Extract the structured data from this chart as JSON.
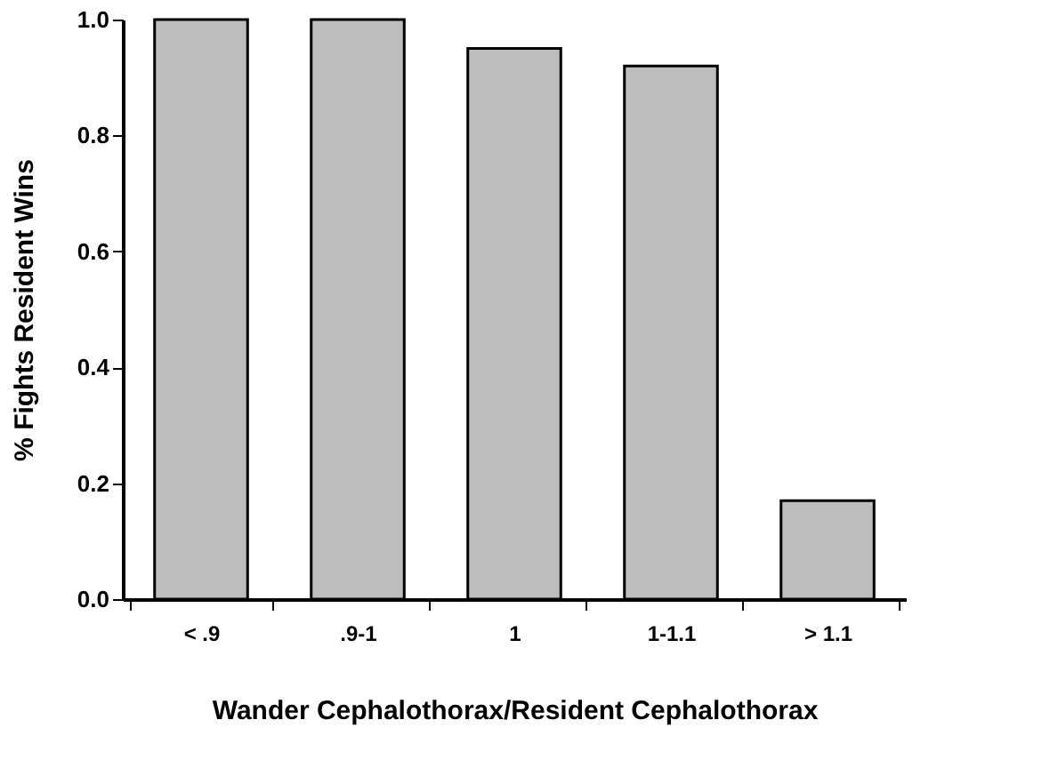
{
  "chart_data": {
    "type": "bar",
    "xlabel": "Wander Cephalothorax/Resident Cephalothorax",
    "ylabel": "% Fights Resident Wins",
    "categories": [
      "< .9",
      ".9-1",
      "1",
      "1-1.1",
      "> 1.1"
    ],
    "values": [
      1.0,
      1.0,
      0.95,
      0.92,
      0.17
    ],
    "color": "#bdbdbd",
    "ylim": [
      0,
      1.0
    ],
    "yticks": [
      {
        "value": 0,
        "label": "0.0"
      },
      0.2,
      0.4,
      0.6,
      0.8,
      {
        "value": 1,
        "label": "1.0"
      }
    ],
    "grid": false
  }
}
